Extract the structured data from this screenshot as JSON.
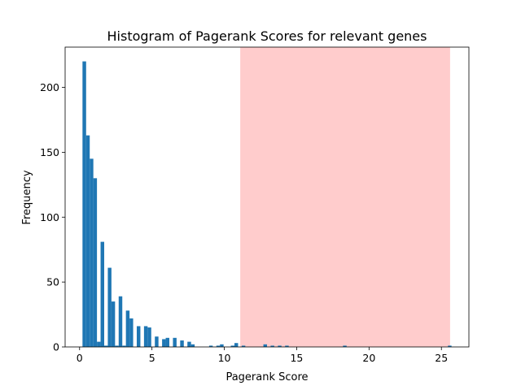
{
  "chart_data": {
    "type": "bar",
    "subtype": "histogram",
    "title": "Histogram of Pagerank Scores for relevant genes",
    "xlabel": "Pagerank Score",
    "ylabel": "Frequency",
    "xlim": [
      -1.0,
      26.9
    ],
    "ylim": [
      0,
      231
    ],
    "xticks": [
      0,
      5,
      10,
      15,
      20,
      25
    ],
    "yticks": [
      0,
      50,
      100,
      150,
      200
    ],
    "grid": false,
    "legend": "none",
    "bar_color": "#1f77b4",
    "bin_width": 0.25,
    "highlight_region": {
      "x_start": 11.1,
      "x_end": 25.6,
      "color": "#ffcccc"
    },
    "bins": [
      {
        "x": 0.2,
        "count": 220
      },
      {
        "x": 0.45,
        "count": 163
      },
      {
        "x": 0.7,
        "count": 145
      },
      {
        "x": 0.95,
        "count": 130
      },
      {
        "x": 1.2,
        "count": 4
      },
      {
        "x": 1.45,
        "count": 81
      },
      {
        "x": 1.7,
        "count": 1
      },
      {
        "x": 1.95,
        "count": 61
      },
      {
        "x": 2.2,
        "count": 35
      },
      {
        "x": 2.45,
        "count": 1
      },
      {
        "x": 2.7,
        "count": 39
      },
      {
        "x": 2.95,
        "count": 1
      },
      {
        "x": 3.2,
        "count": 28
      },
      {
        "x": 3.45,
        "count": 22
      },
      {
        "x": 3.95,
        "count": 16
      },
      {
        "x": 4.45,
        "count": 16
      },
      {
        "x": 4.7,
        "count": 15
      },
      {
        "x": 5.2,
        "count": 8
      },
      {
        "x": 5.7,
        "count": 6
      },
      {
        "x": 5.95,
        "count": 7
      },
      {
        "x": 6.45,
        "count": 7
      },
      {
        "x": 6.95,
        "count": 5
      },
      {
        "x": 7.45,
        "count": 4
      },
      {
        "x": 7.7,
        "count": 2
      },
      {
        "x": 8.95,
        "count": 1
      },
      {
        "x": 9.45,
        "count": 1
      },
      {
        "x": 9.7,
        "count": 2
      },
      {
        "x": 10.45,
        "count": 1
      },
      {
        "x": 10.7,
        "count": 3
      },
      {
        "x": 11.2,
        "count": 1
      },
      {
        "x": 12.7,
        "count": 2
      },
      {
        "x": 13.2,
        "count": 1
      },
      {
        "x": 13.7,
        "count": 1
      },
      {
        "x": 14.2,
        "count": 1
      },
      {
        "x": 18.2,
        "count": 1
      },
      {
        "x": 25.45,
        "count": 1
      }
    ]
  }
}
